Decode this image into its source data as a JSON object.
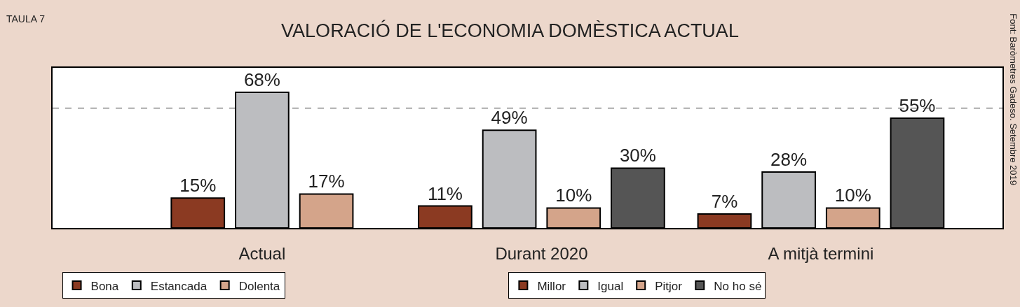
{
  "chart_data": {
    "type": "bar",
    "title": "VALORACIÓ DE L'ECONOMIA DOMÈSTICA ACTUAL",
    "categories": [
      "Actual",
      "Durant 2020",
      "A mitjà termini"
    ],
    "series": [
      {
        "name": "Bona",
        "color": "#8b3a22",
        "values": [
          15,
          null,
          null
        ],
        "value_labels": [
          "15%",
          null,
          null
        ]
      },
      {
        "name": "Estancada",
        "color": "#bcbdc0",
        "values": [
          68,
          null,
          null
        ],
        "value_labels": [
          "68%",
          null,
          null
        ]
      },
      {
        "name": "Dolenta",
        "color": "#d4a48a",
        "values": [
          17,
          null,
          null
        ],
        "value_labels": [
          "17%",
          null,
          null
        ]
      },
      {
        "name": "Millor",
        "color": "#8b3a22",
        "values": [
          null,
          11,
          7
        ],
        "value_labels": [
          null,
          "11%",
          "7%"
        ]
      },
      {
        "name": "Igual",
        "color": "#bcbdc0",
        "values": [
          null,
          49,
          28
        ],
        "value_labels": [
          null,
          "49%",
          "28%"
        ]
      },
      {
        "name": "Pitjor",
        "color": "#d4a48a",
        "values": [
          null,
          10,
          10
        ],
        "value_labels": [
          null,
          "10%",
          "10%"
        ]
      },
      {
        "name": "No ho sé",
        "color": "#555555",
        "values": [
          null,
          30,
          55
        ],
        "value_labels": [
          null,
          "30%",
          "55%"
        ]
      }
    ],
    "tick_labels": "x",
    "grid": false,
    "legend": "bottom",
    "ref_lines": [
      {
        "axis": "y",
        "value": 60,
        "color": "#aaaaaa",
        "line_style": "dashed"
      }
    ],
    "annotations": [
      "TAULA 7",
      "Font: Baròmetres Gadeso. Setembre 2019"
    ]
  }
}
